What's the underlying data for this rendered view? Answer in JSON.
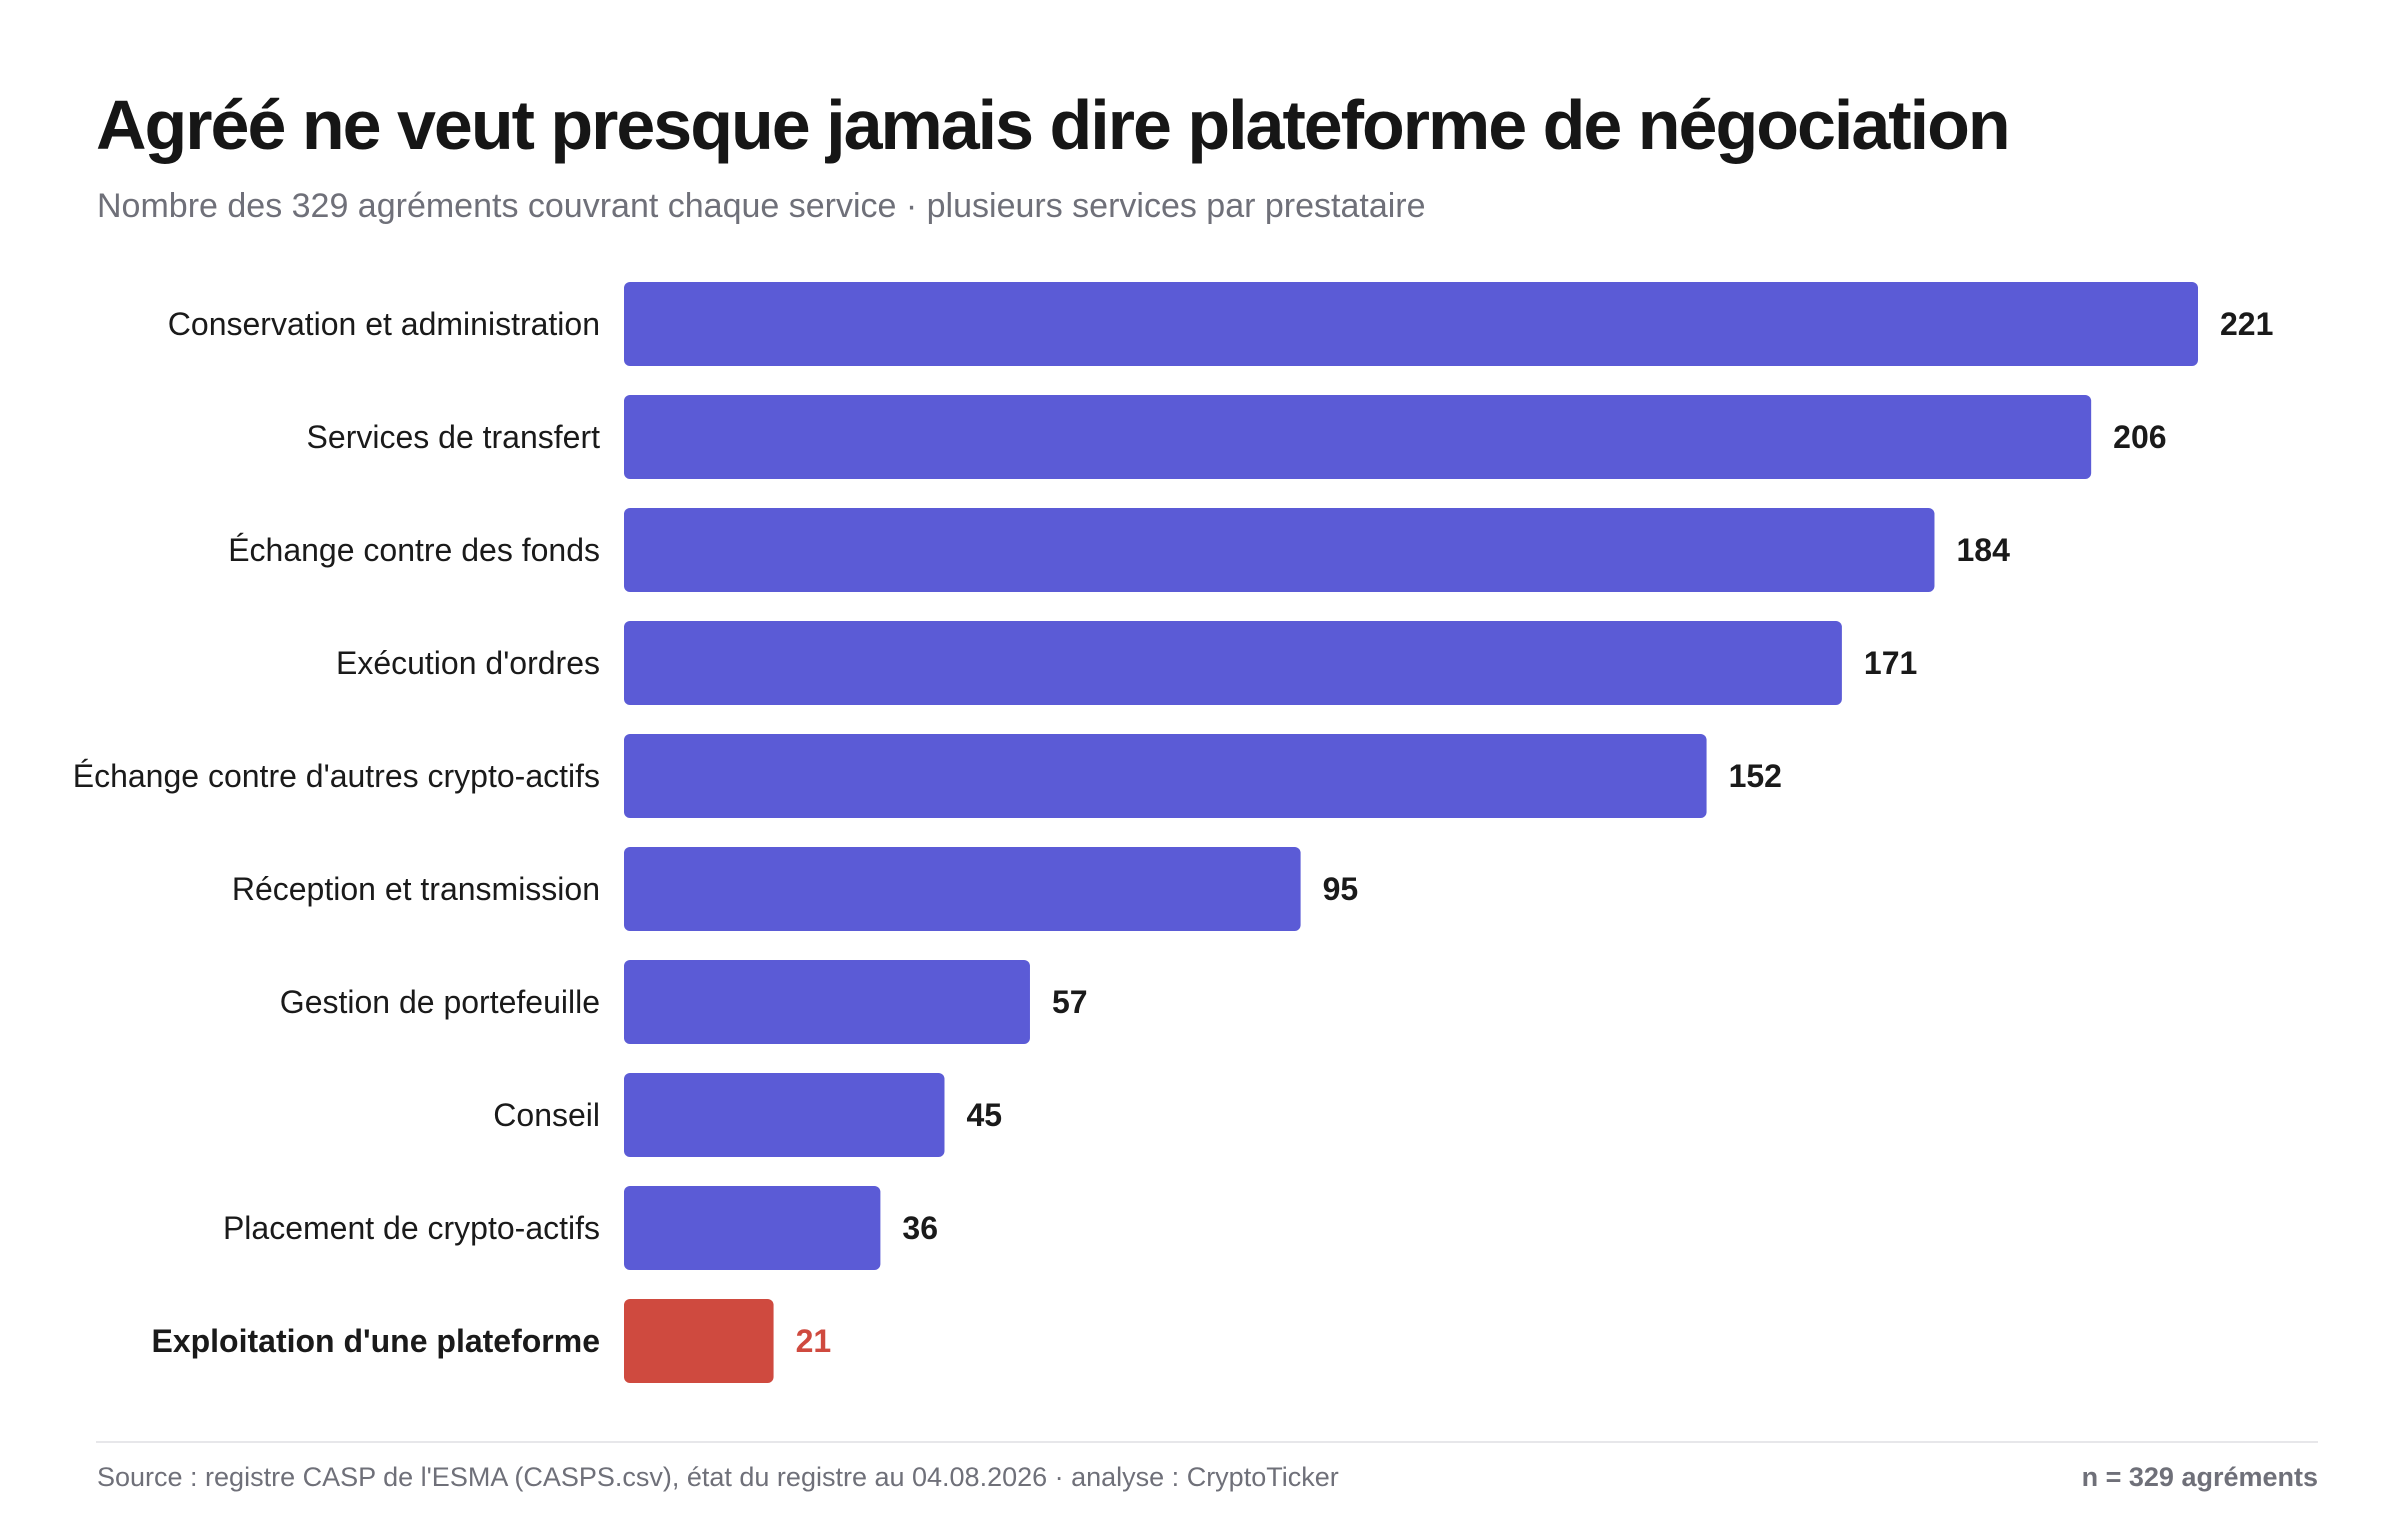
{
  "header": {
    "title": "Agréé ne veut presque jamais dire plateforme de négociation",
    "subtitle": "Nombre des 329 agréments couvrant chaque service · plusieurs services par prestataire"
  },
  "chart_data": {
    "type": "bar",
    "orientation": "horizontal",
    "title": "Agréé ne veut presque jamais dire plateforme de négociation",
    "subtitle": "Nombre des 329 agréments couvrant chaque service · plusieurs services par prestataire",
    "xlabel": "",
    "ylabel": "",
    "xlim": [
      0,
      221
    ],
    "grid": false,
    "categories": [
      "Conservation et administration",
      "Services de transfert",
      "Échange contre des fonds",
      "Exécution d'ordres",
      "Échange contre d'autres crypto-actifs",
      "Réception et transmission",
      "Gestion de portefeuille",
      "Conseil",
      "Placement de crypto-actifs",
      "Exploitation d'une plateforme"
    ],
    "values": [
      221,
      206,
      184,
      171,
      152,
      95,
      57,
      45,
      36,
      21
    ],
    "highlight_index": 9,
    "colors": {
      "bar": "#5b5bd6",
      "highlight": "#cf4a3f",
      "label": "#1a1a1a",
      "value": "#1a1a1a"
    }
  },
  "footer": {
    "source": "Source : registre CASP de l'ESMA (CASPS.csv), état du registre au 04.08.2026 · analyse : CryptoTicker",
    "n_label": "n = 329 agréments"
  }
}
